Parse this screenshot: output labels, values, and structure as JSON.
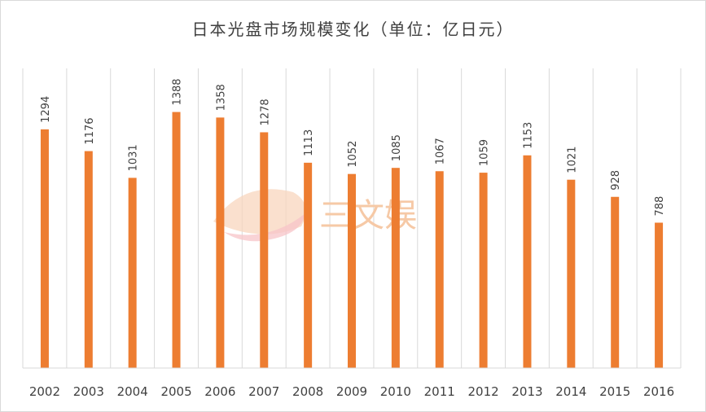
{
  "chart_data": {
    "type": "bar",
    "title": "日本光盘市场规模变化（单位：亿日元）",
    "categories": [
      "2002",
      "2003",
      "2004",
      "2005",
      "2006",
      "2007",
      "2008",
      "2009",
      "2010",
      "2011",
      "2012",
      "2013",
      "2014",
      "2015",
      "2016"
    ],
    "values": [
      1294,
      1176,
      1031,
      1388,
      1358,
      1278,
      1113,
      1052,
      1085,
      1067,
      1059,
      1153,
      1021,
      928,
      788
    ],
    "xlabel": "",
    "ylabel": "",
    "ylim": [
      0,
      1600
    ],
    "grid": "vertical",
    "legend": "none",
    "bar_color": "#ed7d31",
    "grid_color": "#d9d9d9",
    "text_color": "#404040"
  },
  "watermark": {
    "text": "三文娱",
    "color": "#f6c9a6"
  }
}
